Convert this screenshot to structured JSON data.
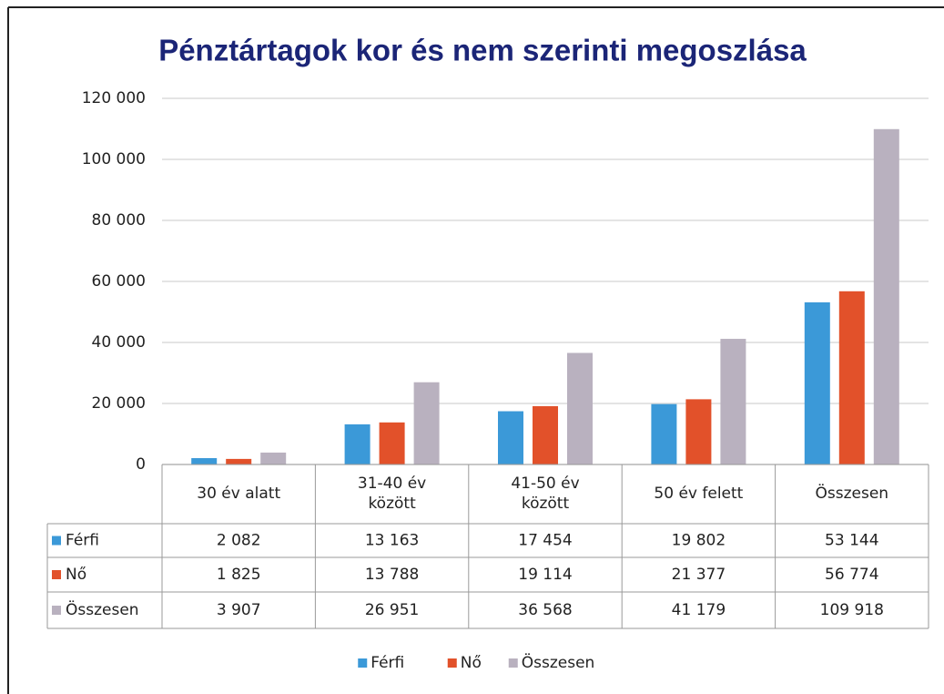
{
  "chart_data": {
    "type": "bar",
    "title": "Pénztártagok kor és nem szerinti megoszlása",
    "categories": [
      "30 év alatt",
      "31-40 év\nközött",
      "41-50 év\nközött",
      "50 év felett",
      "Összesen"
    ],
    "series": [
      {
        "name": "Férfi",
        "color": "#3b99d8",
        "values": [
          2082,
          13163,
          17454,
          19802,
          53144
        ],
        "value_labels": [
          "2 082",
          "13 163",
          "17 454",
          "19 802",
          "53 144"
        ]
      },
      {
        "name": "Nő",
        "color": "#e2512a",
        "values": [
          1825,
          13788,
          19114,
          21377,
          56774
        ],
        "value_labels": [
          "1 825",
          "13 788",
          "19 114",
          "21 377",
          "56 774"
        ]
      },
      {
        "name": "Összesen",
        "color": "#b9b1bf",
        "values": [
          3907,
          26951,
          36568,
          41179,
          109918
        ],
        "value_labels": [
          "3 907",
          "26 951",
          "36 568",
          "41 179",
          "109 918"
        ]
      }
    ],
    "ylim": [
      0,
      120000
    ],
    "yticks": [
      0,
      {
        "value": 20000,
        "label": "20 000"
      },
      {
        "value": 40000,
        "label": "40 000"
      },
      {
        "value": 60000,
        "label": "60 000"
      },
      {
        "value": 80000,
        "label": "80 000"
      },
      {
        "value": 100000,
        "label": "100 000"
      },
      {
        "value": 120000,
        "label": "120 000"
      }
    ],
    "grid": true,
    "legend": "bottom"
  }
}
